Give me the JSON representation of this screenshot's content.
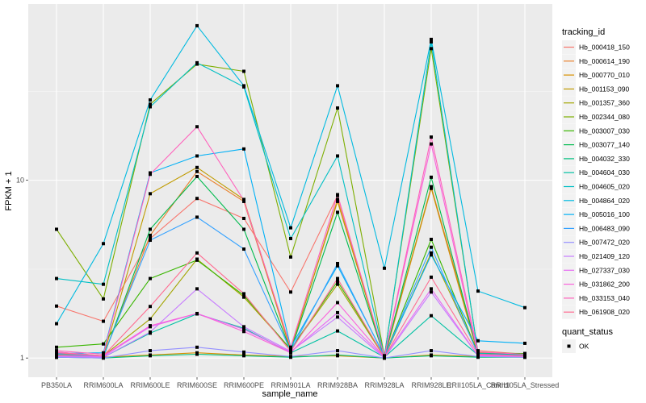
{
  "chart_data": {
    "type": "line",
    "title": "",
    "xlabel": "sample_name",
    "ylabel": "FPKM + 1",
    "y_scale": "log10",
    "ylim": [
      0.78,
      98
    ],
    "y_ticks": [
      {
        "value": 1,
        "label": "1"
      },
      {
        "value": 10,
        "label": "10"
      }
    ],
    "grid": true,
    "categories": [
      "PB350LA",
      "RRIM600LA",
      "RRIM600LE",
      "RRIM600SE",
      "RRIM600PE",
      "RRIM901LA",
      "RRIM928BA",
      "RRIM928LA",
      "RRIM928LE",
      "RRII105LA_Control",
      "RRII105LA_Stressed"
    ],
    "legend": {
      "position": "right",
      "color_title": "tracking_id",
      "shape_title": "quant_status",
      "shape_entries": [
        {
          "label": "OK"
        }
      ]
    },
    "series": [
      {
        "name": "Hb_000418_150",
        "color": "#F8766D",
        "values": [
          1.96,
          1.61,
          4.7,
          7.9,
          6.1,
          2.35,
          8.2,
          1.0,
          9.2,
          1.1,
          1.05
        ]
      },
      {
        "name": "Hb_000614_190",
        "color": "#EA8331",
        "values": [
          1.06,
          1.02,
          4.9,
          11.2,
          7.6,
          1.1,
          7.8,
          1.0,
          9.0,
          1.04,
          1.03
        ]
      },
      {
        "name": "Hb_000770_010",
        "color": "#D89000",
        "values": [
          1.03,
          1.01,
          1.04,
          1.07,
          1.04,
          1.02,
          1.03,
          1.0,
          1.04,
          1.02,
          1.02
        ]
      },
      {
        "name": "Hb_001153_090",
        "color": "#C09B00",
        "values": [
          1.04,
          1.02,
          8.4,
          11.8,
          7.8,
          1.12,
          7.6,
          1.02,
          9.1,
          1.06,
          1.05
        ]
      },
      {
        "name": "Hb_001357_360",
        "color": "#A3A500",
        "values": [
          1.08,
          1.03,
          1.66,
          3.6,
          2.2,
          1.12,
          2.6,
          1.01,
          3.9,
          1.07,
          1.04
        ]
      },
      {
        "name": "Hb_002344_080",
        "color": "#7CAE00",
        "values": [
          5.3,
          2.15,
          26.8,
          45.0,
          41.0,
          3.7,
          25.5,
          1.03,
          55.0,
          1.07,
          1.06
        ]
      },
      {
        "name": "Hb_003007_030",
        "color": "#39B600",
        "values": [
          1.15,
          1.2,
          2.8,
          3.55,
          2.25,
          1.12,
          2.7,
          1.02,
          4.65,
          1.06,
          1.06
        ]
      },
      {
        "name": "Hb_003077_140",
        "color": "#00BB4E",
        "values": [
          1.02,
          1.01,
          5.3,
          10.5,
          5.3,
          1.1,
          6.6,
          1.01,
          10.4,
          1.06,
          1.05
        ]
      },
      {
        "name": "Hb_004032_330",
        "color": "#00BF7D",
        "values": [
          1.01,
          1.0,
          1.03,
          1.05,
          1.03,
          1.01,
          1.04,
          1.0,
          1.03,
          1.01,
          1.01
        ]
      },
      {
        "name": "Hb_004604_030",
        "color": "#00C1A3",
        "values": [
          1.01,
          1.01,
          1.38,
          1.77,
          1.47,
          1.07,
          1.42,
          1.01,
          1.73,
          1.04,
          1.03
        ]
      },
      {
        "name": "Hb_004605_020",
        "color": "#00BFC4",
        "values": [
          2.8,
          2.6,
          25.9,
          45.8,
          33.5,
          4.7,
          13.7,
          1.02,
          60.0,
          1.06,
          1.04
        ]
      },
      {
        "name": "Hb_004864_020",
        "color": "#00BAE0",
        "values": [
          1.56,
          4.4,
          28.3,
          74.0,
          34.0,
          5.4,
          34.0,
          3.2,
          62.0,
          2.38,
          1.92
        ]
      },
      {
        "name": "Hb_005016_100",
        "color": "#00B0F6",
        "values": [
          1.06,
          1.07,
          11.0,
          13.7,
          15.0,
          1.15,
          3.3,
          1.03,
          3.8,
          1.25,
          1.21
        ]
      },
      {
        "name": "Hb_006483_090",
        "color": "#35A2FF",
        "values": [
          1.05,
          1.03,
          4.6,
          6.2,
          4.1,
          1.1,
          3.4,
          1.02,
          4.2,
          1.05,
          1.03
        ]
      },
      {
        "name": "Hb_007472_020",
        "color": "#9590FF",
        "values": [
          1.01,
          1.0,
          1.1,
          1.15,
          1.08,
          1.02,
          1.1,
          1.0,
          1.1,
          1.02,
          1.01
        ]
      },
      {
        "name": "Hb_021409_120",
        "color": "#C77CFF",
        "values": [
          1.02,
          1.01,
          1.4,
          2.45,
          1.5,
          1.09,
          1.7,
          1.0,
          2.35,
          1.03,
          1.02
        ]
      },
      {
        "name": "Hb_027337_030",
        "color": "#E76BF3",
        "values": [
          1.03,
          1.02,
          1.5,
          1.78,
          1.45,
          1.08,
          1.8,
          1.01,
          2.45,
          1.03,
          1.02
        ]
      },
      {
        "name": "Hb_031862_200",
        "color": "#FA62DB",
        "values": [
          1.08,
          1.03,
          1.52,
          1.78,
          1.41,
          1.07,
          2.05,
          1.01,
          16.0,
          1.04,
          1.03
        ]
      },
      {
        "name": "Hb_033153_040",
        "color": "#FF62BC",
        "values": [
          1.1,
          1.05,
          10.8,
          20.0,
          7.7,
          1.15,
          8.3,
          1.02,
          17.5,
          1.08,
          1.05
        ]
      },
      {
        "name": "Hb_061908_020",
        "color": "#FF6C91",
        "values": [
          1.07,
          1.03,
          1.95,
          3.9,
          2.3,
          1.09,
          2.8,
          1.01,
          2.85,
          1.05,
          1.03
        ]
      }
    ]
  }
}
